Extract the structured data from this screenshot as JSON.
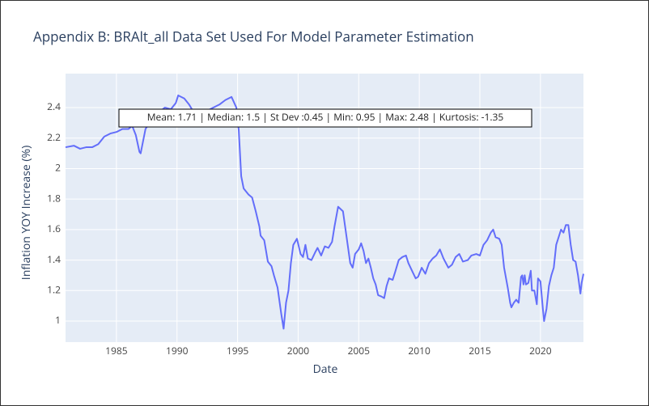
{
  "chart_data": {
    "type": "line",
    "title": "Appendix B: BRAlt_all Data Set Used For Model Parameter Estimation",
    "x_label": "Date",
    "y_label": "Inflation YOY Increase (%)",
    "annotation": "Mean: 1.71 | Median: 1.5 | St Dev :0.45 | Min: 0.95 | Max: 2.48 | Kurtosis: -1.35",
    "grid": true,
    "color": "#636efa",
    "xlim": [
      1980.8,
      2023.55
    ],
    "ylim": [
      0.862,
      2.623
    ],
    "xticks": [
      1985,
      1990,
      1995,
      2000,
      2005,
      2010,
      2015,
      2020
    ],
    "yticks": [
      1,
      1.2,
      1.4,
      1.6,
      1.8,
      2,
      2.2,
      2.4
    ],
    "x": [
      1980.8,
      1981.5,
      1982.0,
      1982.5,
      1983.0,
      1983.5,
      1984.0,
      1984.5,
      1985.0,
      1985.5,
      1986.0,
      1986.3,
      1986.6,
      1986.9,
      1987.0,
      1987.4,
      1988.0,
      1988.5,
      1989.0,
      1989.5,
      1989.9,
      1990.1,
      1990.6,
      1991.0,
      1991.3,
      1992.0,
      1992.5,
      1993.0,
      1993.5,
      1994.0,
      1994.5,
      1994.9,
      1995.1,
      1995.3,
      1995.5,
      1995.9,
      1996.2,
      1996.5,
      1996.8,
      1996.9,
      1997.2,
      1997.5,
      1997.8,
      1998.0,
      1998.3,
      1998.6,
      1998.8,
      1999.0,
      1999.2,
      1999.4,
      1999.6,
      1999.9,
      2000.2,
      2000.4,
      2000.6,
      2000.8,
      2001.1,
      2001.4,
      2001.6,
      2001.9,
      2002.2,
      2002.5,
      2002.8,
      2003.0,
      2003.3,
      2003.7,
      2004.0,
      2004.3,
      2004.5,
      2004.7,
      2005.0,
      2005.2,
      2005.4,
      2005.6,
      2005.8,
      2006.0,
      2006.2,
      2006.4,
      2006.6,
      2006.9,
      2007.1,
      2007.3,
      2007.5,
      2007.8,
      2008.0,
      2008.3,
      2008.6,
      2008.9,
      2009.1,
      2009.4,
      2009.7,
      2009.9,
      2010.2,
      2010.5,
      2010.8,
      2011.1,
      2011.4,
      2011.7,
      2012.0,
      2012.4,
      2012.7,
      2013.0,
      2013.3,
      2013.6,
      2014.0,
      2014.3,
      2014.7,
      2015.0,
      2015.3,
      2015.6,
      2015.9,
      2016.1,
      2016.3,
      2016.6,
      2016.8,
      2017.0,
      2017.3,
      2017.5,
      2017.6,
      2017.8,
      2018.0,
      2018.2,
      2018.4,
      2018.5,
      2018.6,
      2018.7,
      2018.8,
      2019.0,
      2019.2,
      2019.3,
      2019.5,
      2019.7,
      2019.8,
      2020.0,
      2020.2,
      2020.3,
      2020.5,
      2020.7,
      2020.9,
      2021.1,
      2021.3,
      2021.5,
      2021.7,
      2021.9,
      2022.1,
      2022.3,
      2022.5,
      2022.7,
      2022.9,
      2023.1,
      2023.3,
      2023.4,
      2023.55
    ],
    "values": [
      2.14,
      2.15,
      2.13,
      2.14,
      2.14,
      2.16,
      2.21,
      2.23,
      2.24,
      2.26,
      2.26,
      2.28,
      2.22,
      2.11,
      2.1,
      2.26,
      2.33,
      2.37,
      2.4,
      2.39,
      2.43,
      2.48,
      2.46,
      2.42,
      2.38,
      2.37,
      2.38,
      2.4,
      2.42,
      2.45,
      2.47,
      2.4,
      2.25,
      1.95,
      1.87,
      1.83,
      1.81,
      1.72,
      1.62,
      1.56,
      1.53,
      1.39,
      1.36,
      1.3,
      1.22,
      1.05,
      0.95,
      1.12,
      1.2,
      1.38,
      1.5,
      1.54,
      1.44,
      1.42,
      1.5,
      1.41,
      1.4,
      1.45,
      1.48,
      1.43,
      1.49,
      1.48,
      1.52,
      1.62,
      1.75,
      1.72,
      1.55,
      1.38,
      1.35,
      1.44,
      1.47,
      1.51,
      1.46,
      1.38,
      1.41,
      1.35,
      1.28,
      1.24,
      1.17,
      1.16,
      1.15,
      1.23,
      1.28,
      1.27,
      1.32,
      1.4,
      1.42,
      1.43,
      1.38,
      1.33,
      1.28,
      1.29,
      1.35,
      1.31,
      1.38,
      1.41,
      1.43,
      1.47,
      1.41,
      1.35,
      1.37,
      1.42,
      1.44,
      1.39,
      1.4,
      1.43,
      1.44,
      1.43,
      1.5,
      1.53,
      1.58,
      1.6,
      1.55,
      1.54,
      1.5,
      1.35,
      1.22,
      1.12,
      1.09,
      1.12,
      1.14,
      1.12,
      1.29,
      1.3,
      1.24,
      1.3,
      1.24,
      1.25,
      1.33,
      1.2,
      1.2,
      1.11,
      1.28,
      1.26,
      1.08,
      1.0,
      1.08,
      1.23,
      1.3,
      1.35,
      1.5,
      1.55,
      1.6,
      1.58,
      1.63,
      1.63,
      1.5,
      1.4,
      1.39,
      1.3,
      1.18,
      1.25,
      1.31
    ]
  }
}
